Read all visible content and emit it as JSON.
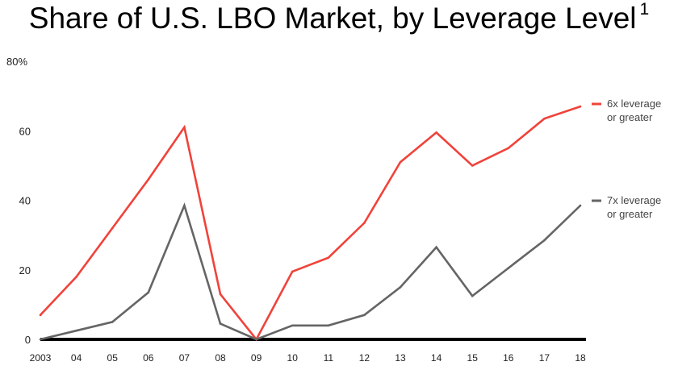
{
  "chart_data": {
    "type": "line",
    "title": "Share of U.S. LBO Market, by Leverage Level",
    "title_footnote": "1",
    "x": [
      "2003",
      "04",
      "05",
      "06",
      "07",
      "08",
      "09",
      "10",
      "11",
      "12",
      "13",
      "14",
      "15",
      "16",
      "17",
      "18"
    ],
    "ylim": [
      0,
      80
    ],
    "y_ticks": [
      "0",
      "20",
      "40",
      "60",
      "80%"
    ],
    "y_tick_values": [
      0,
      20,
      40,
      60,
      80
    ],
    "grid": false,
    "legend_position": "right",
    "series": [
      {
        "name": "6x leverage or greater",
        "label_lines": [
          "6x leverage",
          "or greater"
        ],
        "color": "#f0433a",
        "values": [
          7,
          18,
          32,
          46,
          61,
          13,
          0,
          19.5,
          23.5,
          33.5,
          51,
          59.5,
          50,
          55,
          63.5,
          67
        ]
      },
      {
        "name": "7x leverage or greater",
        "label_lines": [
          "7x leverage",
          "or greater"
        ],
        "color": "#656565",
        "values": [
          0,
          2.5,
          5,
          13.5,
          38.5,
          4.5,
          0,
          4,
          4,
          7,
          15,
          26.5,
          12.5,
          20.5,
          28.5,
          38.5
        ]
      }
    ],
    "axis_color": "#000000"
  }
}
